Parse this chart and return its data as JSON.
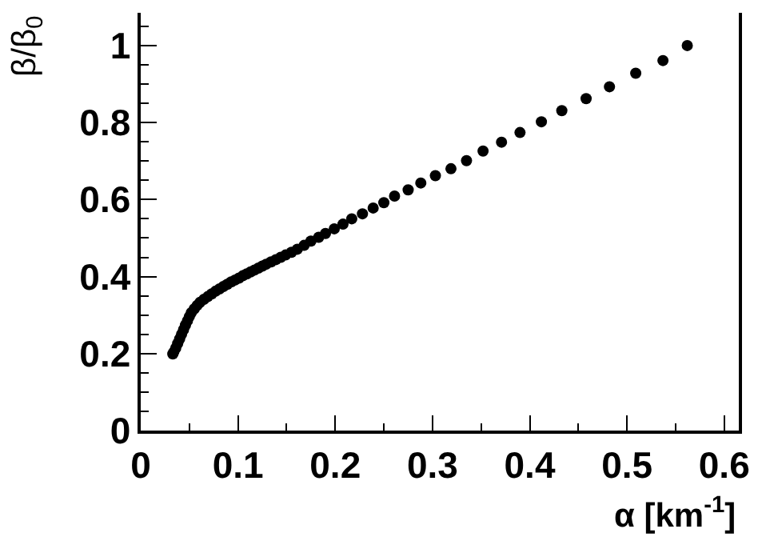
{
  "chart_data": {
    "type": "scatter",
    "xlabel": "α [km$^{-1}$]",
    "ylabel": "β/β$_{0}$",
    "x": [
      0.033,
      0.034,
      0.036,
      0.038,
      0.04,
      0.042,
      0.044,
      0.046,
      0.048,
      0.05,
      0.052,
      0.055,
      0.058,
      0.061,
      0.065,
      0.069,
      0.073,
      0.077,
      0.081,
      0.085,
      0.089,
      0.093,
      0.097,
      0.101,
      0.105,
      0.109,
      0.113,
      0.117,
      0.121,
      0.125,
      0.129,
      0.134,
      0.139,
      0.144,
      0.149,
      0.155,
      0.161,
      0.168,
      0.175,
      0.183,
      0.19,
      0.199,
      0.208,
      0.217,
      0.228,
      0.239,
      0.25,
      0.261,
      0.275,
      0.288,
      0.303,
      0.319,
      0.335,
      0.352,
      0.371,
      0.39,
      0.412,
      0.433,
      0.458,
      0.482,
      0.509,
      0.537,
      0.562
    ],
    "values": [
      0.199,
      0.204,
      0.214,
      0.226,
      0.238,
      0.25,
      0.262,
      0.274,
      0.285,
      0.296,
      0.306,
      0.316,
      0.325,
      0.333,
      0.341,
      0.348,
      0.355,
      0.362,
      0.368,
      0.374,
      0.38,
      0.386,
      0.391,
      0.396,
      0.402,
      0.407,
      0.412,
      0.417,
      0.422,
      0.427,
      0.432,
      0.438,
      0.444,
      0.45,
      0.456,
      0.463,
      0.471,
      0.481,
      0.492,
      0.502,
      0.512,
      0.524,
      0.536,
      0.55,
      0.563,
      0.578,
      0.592,
      0.609,
      0.625,
      0.643,
      0.662,
      0.68,
      0.701,
      0.726,
      0.749,
      0.774,
      0.802,
      0.831,
      0.862,
      0.893,
      0.928,
      0.961,
      1.0
    ],
    "color": "#000000",
    "marker": "circle",
    "grid": false,
    "xlim": [
      0,
      0.615
    ],
    "xticks": [
      0,
      0.1,
      0.2,
      0.3,
      0.4,
      0.5,
      0.6
    ],
    "ylim": [
      0,
      1.085
    ],
    "yticks": [
      0,
      0.2,
      0.4,
      0.6,
      0.8,
      1
    ]
  }
}
